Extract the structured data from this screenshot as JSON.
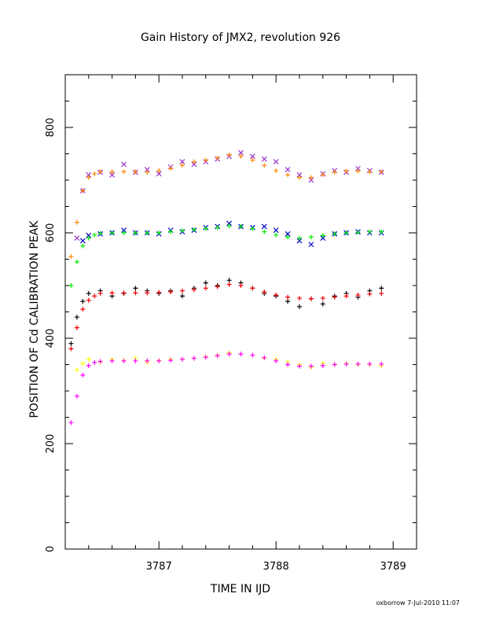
{
  "chart_data": {
    "type": "scatter",
    "title": "Gain History of JMX2, revolution 926",
    "xlabel": "TIME IN IJD",
    "ylabel": "POSITION OF Cd CALIBRATION PEAK",
    "xlim": [
      3786.2,
      3789.2
    ],
    "ylim": [
      0,
      900
    ],
    "xticks": [
      3787,
      3788,
      3789
    ],
    "yticks": [
      0,
      200,
      400,
      600,
      800
    ],
    "grid": false,
    "series": [
      {
        "color": "#9933cc",
        "marker": "x",
        "x": [
          3786.3,
          3786.35,
          3786.4,
          3786.5,
          3786.6,
          3786.7,
          3786.8,
          3786.9,
          3787.0,
          3787.1,
          3787.2,
          3787.3,
          3787.4,
          3787.5,
          3787.6,
          3787.7,
          3787.8,
          3787.9,
          3788.0,
          3788.1,
          3788.2,
          3788.3,
          3788.4,
          3788.5,
          3788.6,
          3788.7,
          3788.8,
          3788.9
        ],
        "values": [
          590,
          680,
          710,
          715,
          710,
          730,
          715,
          720,
          712,
          725,
          735,
          730,
          735,
          740,
          745,
          752,
          745,
          740,
          735,
          720,
          710,
          700,
          712,
          718,
          715,
          722,
          718,
          715
        ]
      },
      {
        "color": "#ff8800",
        "marker": "+",
        "x": [
          3786.25,
          3786.3,
          3786.35,
          3786.4,
          3786.45,
          3786.5,
          3786.6,
          3786.7,
          3786.8,
          3786.9,
          3787.0,
          3787.1,
          3787.2,
          3787.3,
          3787.4,
          3787.5,
          3787.6,
          3787.7,
          3787.8,
          3787.9,
          3788.0,
          3788.1,
          3788.2,
          3788.3,
          3788.4,
          3788.5,
          3788.6,
          3788.7,
          3788.8,
          3788.9
        ],
        "values": [
          555,
          620,
          680,
          705,
          712,
          716,
          716,
          716,
          716,
          715,
          718,
          722,
          728,
          735,
          738,
          742,
          748,
          745,
          738,
          728,
          718,
          710,
          705,
          705,
          710,
          715,
          717,
          717,
          716,
          716
        ]
      },
      {
        "color": "#0000cc",
        "marker": "x",
        "x": [
          3786.35,
          3786.4,
          3786.5,
          3786.6,
          3786.7,
          3786.8,
          3786.9,
          3787.0,
          3787.1,
          3787.2,
          3787.3,
          3787.4,
          3787.5,
          3787.6,
          3787.7,
          3787.8,
          3787.9,
          3788.0,
          3788.1,
          3788.2,
          3788.3,
          3788.4,
          3788.5,
          3788.6,
          3788.7,
          3788.8,
          3788.9
        ],
        "values": [
          585,
          595,
          598,
          600,
          605,
          600,
          600,
          598,
          605,
          602,
          605,
          610,
          612,
          618,
          612,
          610,
          612,
          605,
          598,
          585,
          578,
          590,
          598,
          600,
          602,
          600,
          600
        ]
      },
      {
        "color": "#00ee00",
        "marker": "+",
        "x": [
          3786.25,
          3786.3,
          3786.35,
          3786.4,
          3786.45,
          3786.5,
          3786.6,
          3786.7,
          3786.8,
          3786.9,
          3787.0,
          3787.1,
          3787.2,
          3787.3,
          3787.4,
          3787.5,
          3787.6,
          3787.7,
          3787.8,
          3787.9,
          3788.0,
          3788.1,
          3788.2,
          3788.3,
          3788.4,
          3788.5,
          3788.6,
          3788.7,
          3788.8,
          3788.9
        ],
        "values": [
          500,
          545,
          575,
          590,
          596,
          599,
          600,
          600,
          600,
          600,
          600,
          602,
          604,
          606,
          608,
          610,
          613,
          612,
          608,
          602,
          596,
          592,
          590,
          592,
          595,
          598,
          600,
          601,
          602,
          602
        ]
      },
      {
        "color": "#000000",
        "marker": "+",
        "x": [
          3786.25,
          3786.3,
          3786.35,
          3786.4,
          3786.5,
          3786.6,
          3786.7,
          3786.8,
          3786.9,
          3787.0,
          3787.1,
          3787.2,
          3787.3,
          3787.4,
          3787.5,
          3787.6,
          3787.7,
          3787.8,
          3787.9,
          3788.0,
          3788.1,
          3788.2,
          3788.3,
          3788.4,
          3788.5,
          3788.6,
          3788.7,
          3788.8,
          3788.9
        ],
        "values": [
          390,
          440,
          470,
          485,
          490,
          480,
          485,
          495,
          490,
          485,
          490,
          480,
          495,
          505,
          500,
          510,
          505,
          495,
          485,
          480,
          470,
          460,
          475,
          465,
          480,
          485,
          478,
          490,
          495
        ]
      },
      {
        "color": "#ee0000",
        "marker": "+",
        "x": [
          3786.25,
          3786.3,
          3786.35,
          3786.4,
          3786.45,
          3786.5,
          3786.6,
          3786.7,
          3786.8,
          3786.9,
          3787.0,
          3787.1,
          3787.2,
          3787.3,
          3787.4,
          3787.5,
          3787.6,
          3787.7,
          3787.8,
          3787.9,
          3788.0,
          3788.1,
          3788.2,
          3788.3,
          3788.4,
          3788.5,
          3788.6,
          3788.7,
          3788.8,
          3788.9
        ],
        "values": [
          380,
          420,
          455,
          472,
          480,
          485,
          486,
          486,
          486,
          486,
          487,
          488,
          490,
          492,
          495,
          498,
          502,
          500,
          495,
          488,
          482,
          478,
          476,
          475,
          476,
          478,
          480,
          482,
          484,
          485
        ]
      },
      {
        "color": "#ffff00",
        "marker": "+",
        "x": [
          3786.3,
          3786.35,
          3786.4,
          3786.5,
          3786.6,
          3786.7,
          3786.8,
          3786.9,
          3787.0,
          3787.1,
          3787.2,
          3787.3,
          3787.4,
          3787.5,
          3787.6,
          3787.7,
          3787.8,
          3787.9,
          3788.0,
          3788.1,
          3788.2,
          3788.3,
          3788.4,
          3788.5,
          3788.6,
          3788.7,
          3788.8,
          3788.9
        ],
        "values": [
          340,
          352,
          360,
          355,
          360,
          358,
          362,
          355,
          358,
          360,
          360,
          362,
          365,
          368,
          372,
          370,
          368,
          362,
          360,
          355,
          350,
          345,
          352,
          350,
          352,
          350,
          350,
          348
        ]
      },
      {
        "color": "#ff00ff",
        "marker": "+",
        "x": [
          3786.25,
          3786.3,
          3786.35,
          3786.4,
          3786.45,
          3786.5,
          3786.6,
          3786.7,
          3786.8,
          3786.9,
          3787.0,
          3787.1,
          3787.2,
          3787.3,
          3787.4,
          3787.5,
          3787.6,
          3787.7,
          3787.8,
          3787.9,
          3788.0,
          3788.1,
          3788.2,
          3788.3,
          3788.4,
          3788.5,
          3788.6,
          3788.7,
          3788.8,
          3788.9
        ],
        "values": [
          240,
          290,
          330,
          348,
          354,
          356,
          357,
          357,
          357,
          357,
          357,
          358,
          360,
          362,
          364,
          367,
          370,
          370,
          368,
          363,
          357,
          350,
          347,
          347,
          348,
          350,
          351,
          351,
          351,
          351
        ]
      }
    ]
  },
  "footer": {
    "text": "oxborrow  7-Jul-2010 11:07"
  }
}
